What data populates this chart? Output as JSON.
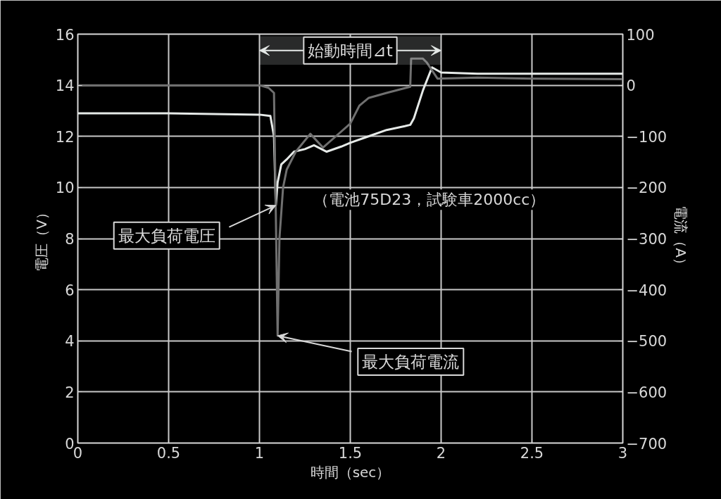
{
  "chart_data": {
    "type": "line",
    "xlabel": "時間（sec）",
    "ylabel": "電圧（V）",
    "y2label": "電流（A）",
    "xlim": [
      0,
      3
    ],
    "xticks": [
      0,
      0.5,
      1,
      1.5,
      2,
      2.5,
      3
    ],
    "ylim": [
      0,
      16
    ],
    "yticks": [
      0,
      2,
      4,
      6,
      8,
      10,
      12,
      14,
      16
    ],
    "y2lim": [
      -700,
      100
    ],
    "y2ticks": [
      {
        "value": -700,
        "label": "−700"
      },
      {
        "value": -600,
        "label": "−600"
      },
      {
        "value": -500,
        "label": "−500"
      },
      {
        "value": -400,
        "label": "−400"
      },
      {
        "value": -300,
        "label": "−300"
      },
      {
        "value": -200,
        "label": "−200"
      },
      {
        "value": -100,
        "label": "−100"
      },
      0,
      100
    ],
    "grid": true,
    "series": [
      {
        "color": "#e6eae8",
        "x": [
          0,
          0.5,
          1.0,
          1.06,
          1.08,
          1.09,
          1.1,
          1.12,
          1.15,
          1.19,
          1.25,
          1.3,
          1.37,
          1.45,
          1.5,
          1.6,
          1.7,
          1.8,
          1.83,
          1.85,
          1.9,
          1.95,
          2.0,
          2.2,
          2.5,
          2.8,
          3.0
        ],
        "values": [
          12.9,
          12.9,
          12.85,
          12.8,
          12.0,
          9.3,
          10.2,
          10.9,
          11.1,
          11.4,
          11.5,
          11.65,
          11.4,
          11.6,
          11.75,
          12.0,
          12.25,
          12.4,
          12.45,
          12.7,
          13.8,
          14.7,
          14.5,
          14.45,
          14.45,
          14.45,
          14.45
        ]
      },
      {
        "color": "#707070",
        "axis": "y2",
        "x": [
          0,
          0.5,
          1.0,
          1.05,
          1.08,
          1.09,
          1.1,
          1.11,
          1.13,
          1.15,
          1.2,
          1.28,
          1.35,
          1.42,
          1.5,
          1.55,
          1.6,
          1.7,
          1.83,
          1.835,
          1.9,
          1.92,
          1.98,
          2.2,
          2.5,
          3.0
        ],
        "values": [
          0,
          0,
          0,
          -5,
          -15,
          -250,
          -490,
          -300,
          -200,
          -165,
          -130,
          -95,
          -122,
          -100,
          -75,
          -40,
          -25,
          -15,
          -3,
          52,
          52,
          45,
          13,
          15,
          13,
          12
        ]
      }
    ],
    "bands": [
      {
        "axis": "x",
        "from": 1,
        "to": 2,
        "label": "始動時間⊿t",
        "color": "#e6eae8"
      }
    ],
    "annotations": [
      {
        "text": "最大負荷電圧",
        "x": 1.09,
        "y": 9.3
      },
      {
        "text": "最大負荷電流",
        "x": 1.1,
        "y": 4.2
      },
      "（電池75D23，試験車2000cc）"
    ]
  }
}
